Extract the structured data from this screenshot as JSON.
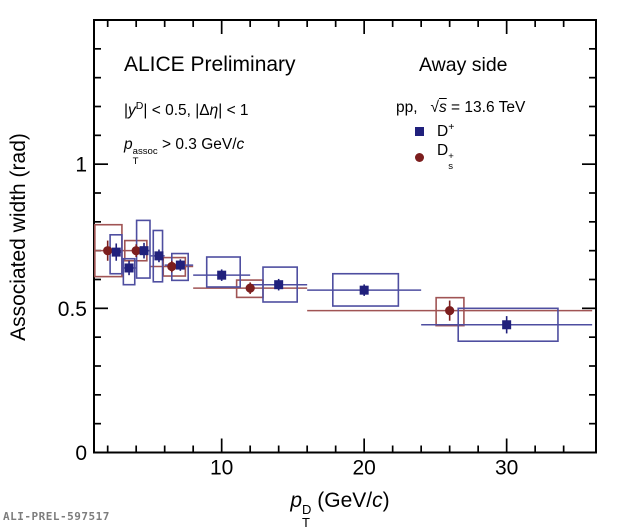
{
  "watermark": "ALI-PREL-597517",
  "annotations": {
    "experiment": "ALICE Preliminary",
    "cuts": "|#it{y}^{D}| < 0.5, |Δ#it{η}| < 1",
    "assoc_cut": "#it{p}_{T}^{assoc} > 0.3 GeV/#it{c}",
    "region": "Away side",
    "collision": "pp,   #sqrt{s} = 13.6 TeV"
  },
  "legend": {
    "entries": [
      {
        "label": "D^{+}",
        "marker": "square",
        "color": "#20207c"
      },
      {
        "label": "D_{s}^{+}",
        "marker": "circle",
        "color": "#7c1e1e"
      }
    ]
  },
  "chart_data": {
    "type": "scatter",
    "title": "",
    "xlabel": "#it{p}_{T}^{D} (GeV/#it{c})",
    "ylabel": "Associated width (rad)",
    "xlim": [
      1.04,
      36.27
    ],
    "ylim": [
      0,
      1.5
    ],
    "x_major_ticks": [
      10,
      20,
      30
    ],
    "x_tick_labels": [
      "10",
      "20",
      "30"
    ],
    "x_minor_step": 2,
    "y_major_ticks": [
      0,
      0.5,
      1
    ],
    "y_tick_labels": [
      "0",
      "0.5",
      "1"
    ],
    "y_minor_step": 0.1,
    "grid": false,
    "legend_position": "top-right",
    "series": [
      {
        "name": "D_{s}^{+}",
        "marker": "circle",
        "color": "#7c1e1e",
        "light_color": "#a05454",
        "points": [
          {
            "x": 2.0,
            "y": 0.7,
            "bin": [
              1.0,
              3.0
            ],
            "yerr": 0.035,
            "box_x": [
              1.1,
              3.0
            ],
            "box_y": [
              0.61,
              0.79
            ]
          },
          {
            "x": 4.0,
            "y": 0.7,
            "bin": [
              3.0,
              5.0
            ],
            "yerr": 0.022,
            "box_x": [
              3.2,
              4.75
            ],
            "box_y": [
              0.665,
              0.735
            ]
          },
          {
            "x": 6.5,
            "y": 0.645,
            "bin": [
              5.0,
              8.0
            ],
            "yerr": 0.02,
            "box_x": [
              5.9,
              7.45
            ],
            "box_y": [
              0.612,
              0.676
            ]
          },
          {
            "x": 12.0,
            "y": 0.57,
            "bin": [
              8.0,
              16.0
            ],
            "yerr": 0.02,
            "box_x": [
              11.05,
              12.9
            ],
            "box_y": [
              0.538,
              0.598
            ]
          },
          {
            "x": 26.0,
            "y": 0.492,
            "bin": [
              16.0,
              36.0
            ],
            "yerr": 0.035,
            "box_x": [
              25.05,
              27.0
            ],
            "box_y": [
              0.44,
              0.537
            ]
          }
        ]
      },
      {
        "name": "D^{+}",
        "marker": "square",
        "color": "#20207c",
        "light_color": "#4e4ea0",
        "points": [
          {
            "x": 2.6,
            "y": 0.695,
            "bin": [
              2.0,
              3.0
            ],
            "yerr": 0.03,
            "box_x": [
              2.17,
              3.0
            ],
            "box_y": [
              0.62,
              0.755
            ]
          },
          {
            "x": 3.5,
            "y": 0.64,
            "bin": [
              3.0,
              4.0
            ],
            "yerr": 0.025,
            "box_x": [
              3.1,
              3.9
            ],
            "box_y": [
              0.582,
              0.672
            ]
          },
          {
            "x": 4.55,
            "y": 0.7,
            "bin": [
              4.0,
              5.0
            ],
            "yerr": 0.027,
            "box_x": [
              4.03,
              4.97
            ],
            "box_y": [
              0.605,
              0.805
            ]
          },
          {
            "x": 5.6,
            "y": 0.682,
            "bin": [
              5.0,
              6.0
            ],
            "yerr": 0.022,
            "box_x": [
              5.2,
              5.85
            ],
            "box_y": [
              0.592,
              0.77
            ]
          },
          {
            "x": 7.1,
            "y": 0.65,
            "bin": [
              6.0,
              8.0
            ],
            "yerr": 0.02,
            "box_x": [
              6.5,
              7.65
            ],
            "box_y": [
              0.597,
              0.69
            ]
          },
          {
            "x": 10.0,
            "y": 0.615,
            "bin": [
              8.0,
              12.0
            ],
            "yerr": 0.02,
            "box_x": [
              8.95,
              11.3
            ],
            "box_y": [
              0.574,
              0.678
            ]
          },
          {
            "x": 14.0,
            "y": 0.582,
            "bin": [
              12.0,
              16.0
            ],
            "yerr": 0.02,
            "box_x": [
              12.9,
              15.3
            ],
            "box_y": [
              0.522,
              0.643
            ]
          },
          {
            "x": 20.0,
            "y": 0.563,
            "bin": [
              16.0,
              24.0
            ],
            "yerr": 0.02,
            "box_x": [
              17.8,
              22.4
            ],
            "box_y": [
              0.508,
              0.62
            ]
          },
          {
            "x": 30.0,
            "y": 0.443,
            "bin": [
              24.0,
              36.0
            ],
            "yerr": 0.03,
            "box_x": [
              26.6,
              33.6
            ],
            "box_y": [
              0.386,
              0.5
            ]
          }
        ]
      }
    ]
  }
}
